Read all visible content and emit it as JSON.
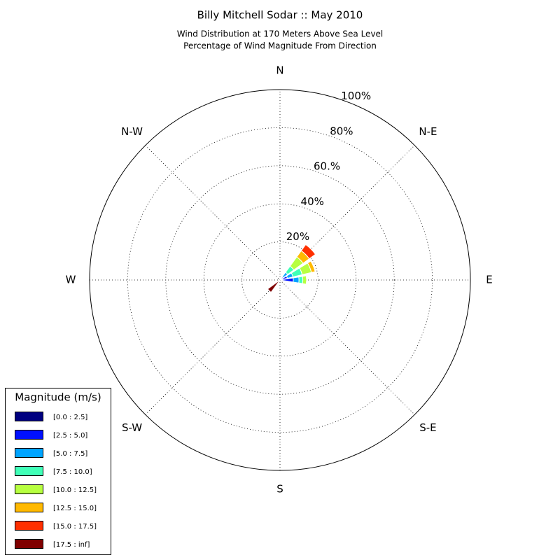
{
  "chart_data": {
    "type": "windrose",
    "title": "Billy Mitchell Sodar :: May 2010",
    "subtitle": [
      "Wind Distribution at 170 Meters Above Sea Level",
      "Percentage of Wind Magnitude From Direction"
    ],
    "categories": [
      "N",
      null,
      "N-E",
      null,
      "E",
      null,
      "S-E",
      null,
      "S",
      null,
      "S-W",
      null,
      "W",
      null,
      "N-W",
      null
    ],
    "series": [
      {
        "name": "[0.0 : 2.5]",
        "color": "#000080",
        "values": [
          0,
          0,
          0.5,
          1,
          1,
          0,
          0,
          0,
          0,
          0,
          0,
          0,
          0,
          0,
          0,
          0
        ]
      },
      {
        "name": "[2.5 : 5.0]",
        "color": "#0010ff",
        "values": [
          0,
          0,
          1.5,
          3,
          6,
          0,
          0,
          0,
          0,
          0,
          0,
          0,
          0,
          0,
          0,
          0
        ]
      },
      {
        "name": "[5.0 : 7.5]",
        "color": "#00a4ff",
        "values": [
          0,
          0,
          3,
          3,
          3,
          0,
          0,
          0,
          0,
          0,
          0,
          0,
          0,
          0,
          0,
          0
        ]
      },
      {
        "name": "[7.5 : 10.0]",
        "color": "#40ffb7",
        "values": [
          0,
          0,
          4,
          5,
          2,
          0,
          0,
          0,
          0,
          0,
          0,
          0,
          0,
          0,
          0,
          0
        ]
      },
      {
        "name": "[10.0 : 12.5]",
        "color": "#b7ff40",
        "values": [
          0,
          0,
          6,
          5,
          2,
          0,
          0,
          0,
          0,
          0,
          0,
          0,
          0,
          0,
          0,
          0
        ]
      },
      {
        "name": "[12.5 : 15.0]",
        "color": "#ffb900",
        "values": [
          0,
          0,
          4,
          2,
          0,
          0,
          0,
          0,
          0,
          0,
          0,
          0,
          0,
          0,
          0,
          0
        ]
      },
      {
        "name": "[15.0 : 17.5]",
        "color": "#ff3000",
        "values": [
          0,
          0,
          4,
          0,
          0,
          0,
          0,
          0,
          0,
          0,
          0,
          0,
          0,
          0,
          0,
          0
        ]
      },
      {
        "name": "[17.5 : inf]",
        "color": "#800000",
        "values": [
          0,
          0,
          0,
          0,
          0,
          0,
          0,
          0,
          0,
          0,
          8,
          0,
          0,
          0,
          0,
          0
        ]
      }
    ],
    "ylim": [
      0,
      100
    ],
    "yticks": [
      {
        "value": 20,
        "label": "20%"
      },
      {
        "value": 40,
        "label": "40%"
      },
      {
        "value": 60,
        "label": "60.%"
      },
      {
        "value": 80,
        "label": "80%"
      },
      {
        "value": 100,
        "label": "100%"
      }
    ],
    "grid": true,
    "legend": {
      "title": "Magnitude (m/s)",
      "position": "lower left"
    }
  }
}
